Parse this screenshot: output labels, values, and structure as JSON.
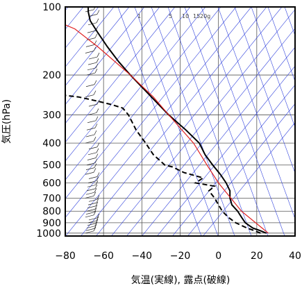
{
  "chart_data": {
    "type": "line",
    "xlabel": "気温(実線), 露点(破線)",
    "ylabel": "気圧(hPa)",
    "xlim": [
      -80,
      40
    ],
    "ylim": [
      1030,
      100
    ],
    "y_scale": "log",
    "grid": true,
    "x_ticks": [
      -80,
      -60,
      -40,
      -20,
      0,
      20,
      40
    ],
    "y_ticks": [
      100,
      200,
      300,
      400,
      500,
      600,
      700,
      800,
      900,
      1000
    ],
    "mixing_ratio_labels": [
      "1",
      "5",
      "10",
      "15",
      "20g"
    ],
    "series": [
      {
        "style": "solid",
        "points": [
          {
            "p": 1000,
            "t": 25
          },
          {
            "p": 970,
            "t": 21
          },
          {
            "p": 950,
            "t": 18
          },
          {
            "p": 925,
            "t": 16
          },
          {
            "p": 900,
            "t": 14
          },
          {
            "p": 850,
            "t": 12
          },
          {
            "p": 800,
            "t": 10
          },
          {
            "p": 750,
            "t": 7
          },
          {
            "p": 700,
            "t": 6
          },
          {
            "p": 650,
            "t": 6
          },
          {
            "p": 600,
            "t": 4
          },
          {
            "p": 550,
            "t": 1
          },
          {
            "p": 500,
            "t": -3
          },
          {
            "p": 450,
            "t": -7
          },
          {
            "p": 400,
            "t": -10
          },
          {
            "p": 350,
            "t": -17
          },
          {
            "p": 300,
            "t": -26
          },
          {
            "p": 250,
            "t": -35
          },
          {
            "p": 200,
            "t": -46
          },
          {
            "p": 175,
            "t": -52
          },
          {
            "p": 150,
            "t": -58
          },
          {
            "p": 130,
            "t": -63
          },
          {
            "p": 115,
            "t": -67
          },
          {
            "p": 105,
            "t": -68
          },
          {
            "p": 100,
            "t": -68
          }
        ]
      },
      {
        "style": "dashed",
        "points": [
          {
            "p": 1000,
            "t": 22
          },
          {
            "p": 970,
            "t": 18
          },
          {
            "p": 950,
            "t": 15
          },
          {
            "p": 900,
            "t": 9
          },
          {
            "p": 850,
            "t": 5
          },
          {
            "p": 800,
            "t": 2
          },
          {
            "p": 750,
            "t": 0
          },
          {
            "p": 700,
            "t": -2
          },
          {
            "p": 650,
            "t": -5
          },
          {
            "p": 620,
            "t": -2
          },
          {
            "p": 600,
            "t": -12
          },
          {
            "p": 570,
            "t": -8
          },
          {
            "p": 540,
            "t": -18
          },
          {
            "p": 510,
            "t": -24
          },
          {
            "p": 500,
            "t": -28
          },
          {
            "p": 450,
            "t": -34
          },
          {
            "p": 400,
            "t": -38
          },
          {
            "p": 350,
            "t": -43
          },
          {
            "p": 300,
            "t": -47
          },
          {
            "p": 280,
            "t": -50
          },
          {
            "p": 270,
            "t": -56
          },
          {
            "p": 260,
            "t": -64
          },
          {
            "p": 250,
            "t": -73
          },
          {
            "p": 245,
            "t": -82
          }
        ]
      },
      {
        "style": "red",
        "points": [
          {
            "p": 1000,
            "t": 26
          },
          {
            "p": 800,
            "t": 12
          },
          {
            "p": 600,
            "t": 0
          },
          {
            "p": 500,
            "t": -6
          },
          {
            "p": 400,
            "t": -13
          },
          {
            "p": 300,
            "t": -26
          },
          {
            "p": 250,
            "t": -34
          },
          {
            "p": 200,
            "t": -46
          },
          {
            "p": 150,
            "t": -63
          },
          {
            "p": 125,
            "t": -75
          },
          {
            "p": 120,
            "t": -80
          }
        ]
      }
    ],
    "wind_barbs_pressures": [
      1000,
      975,
      950,
      925,
      900,
      875,
      850,
      825,
      800,
      775,
      750,
      725,
      700,
      675,
      650,
      625,
      600,
      575,
      550,
      525,
      500,
      475,
      450,
      425,
      400,
      375,
      350,
      325,
      300,
      275,
      250,
      225,
      200,
      190,
      180,
      170,
      160,
      150,
      140,
      130,
      120,
      110,
      105,
      100
    ]
  }
}
